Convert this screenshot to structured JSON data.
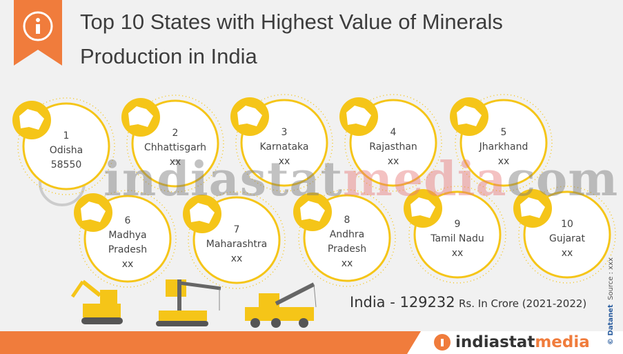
{
  "header": {
    "title": [
      "Top 10 States with Highest Value of Minerals",
      "Production in India"
    ]
  },
  "states": [
    {
      "rank": 1,
      "name": "Odisha",
      "value": 58550
    },
    {
      "rank": 2,
      "name": "Chhattisgarh",
      "value": "xx"
    },
    {
      "rank": 3,
      "name": "Karnataka",
      "value": "xx"
    },
    {
      "rank": 4,
      "name": "Rajasthan",
      "value": "xx"
    },
    {
      "rank": 5,
      "name": "Jharkhand",
      "value": "xx"
    },
    {
      "rank": 6,
      "name": "Madhya Pradesh",
      "value": "xx"
    },
    {
      "rank": 7,
      "name": "Maharashtra",
      "value": "xx"
    },
    {
      "rank": 8,
      "name": "Andhra Pradesh",
      "value": "xx"
    },
    {
      "rank": 9,
      "name": "Tamil Nadu",
      "value": "xx"
    },
    {
      "rank": 10,
      "name": "Gujarat",
      "value": "xx"
    }
  ],
  "total": {
    "label": "India - 129232",
    "unit": "Rs. In Crore (2021-2022)"
  },
  "watermark": [
    "indiastat",
    "media",
    "com"
  ],
  "credit": "© Datanet",
  "source": "Source : xxx",
  "logo": [
    "indiastat",
    "media"
  ]
}
